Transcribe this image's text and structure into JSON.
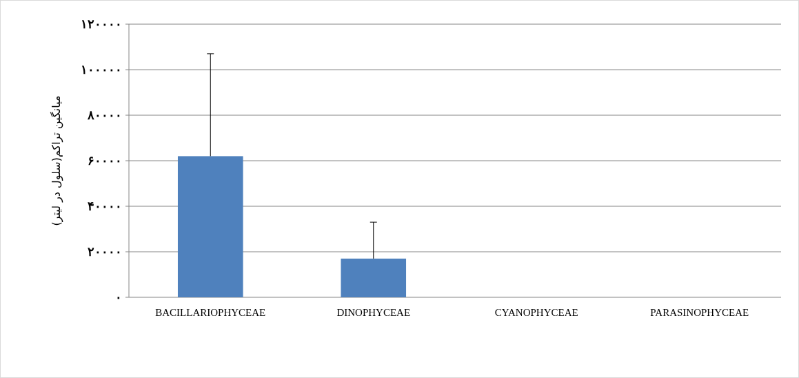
{
  "chart_data": {
    "type": "bar",
    "ylabel": "میانگین تراکم(سلول در لیتر)",
    "categories": [
      "BACILLARIOPHYCEAE",
      "DINOPHYCEAE",
      "CYANOPHYCEAE",
      "PARASINOPHYCEAE"
    ],
    "values": [
      62000,
      17000,
      0,
      0
    ],
    "errors": [
      [
        62000,
        107000
      ],
      [
        17000,
        33000
      ],
      null,
      null
    ],
    "color": "#4f81bd",
    "ylim": [
      0,
      120000
    ],
    "yticks": [
      {
        "value": 0,
        "label": "۰"
      },
      {
        "value": 20000,
        "label": "۲۰۰۰۰"
      },
      {
        "value": 40000,
        "label": "۴۰۰۰۰"
      },
      {
        "value": 60000,
        "label": "۶۰۰۰۰"
      },
      {
        "value": 80000,
        "label": "۸۰۰۰۰"
      },
      {
        "value": 100000,
        "label": "۱۰۰۰۰۰"
      },
      {
        "value": 120000,
        "label": "۱۲۰۰۰۰"
      }
    ],
    "grid": "y"
  }
}
